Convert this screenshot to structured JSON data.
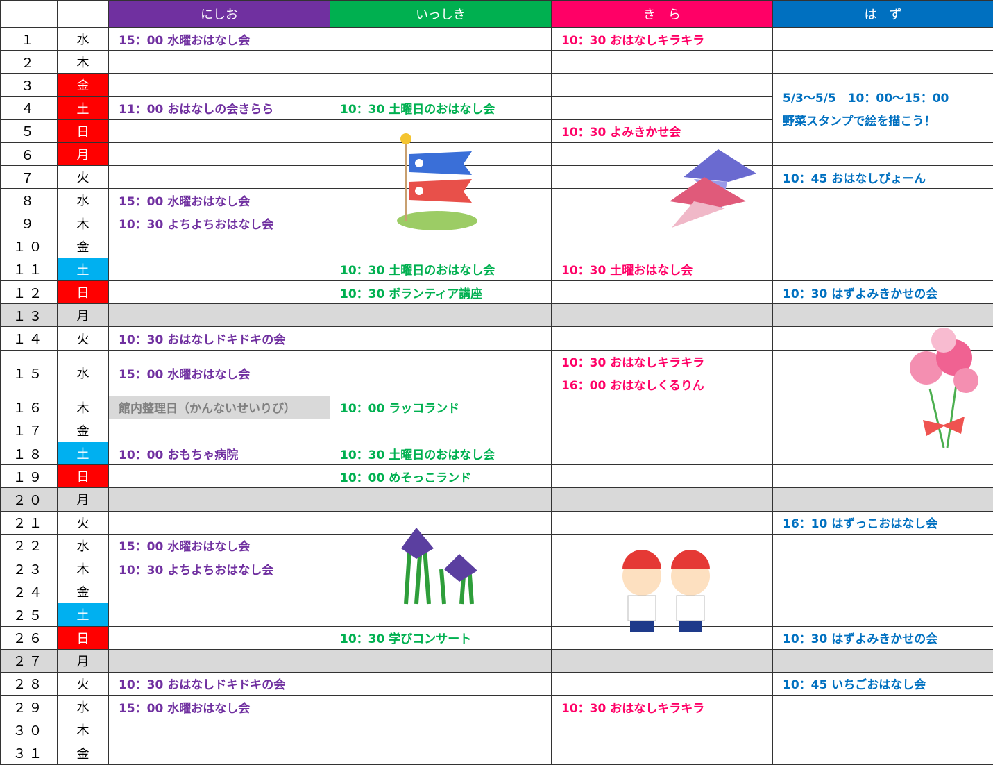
{
  "table": {
    "header": [
      {
        "label": "にしお",
        "color": "#7030a0"
      },
      {
        "label": "いっしき",
        "color": "#00b050"
      },
      {
        "label": "き　ら",
        "color": "#ff0066"
      },
      {
        "label": "は　ず",
        "color": "#0070c0"
      }
    ],
    "rows": [
      {
        "day": "１",
        "weekday": "水",
        "events": [
          "15：00 水曜おはなし会",
          null,
          "10：30 おはなしキラキラ",
          null
        ]
      },
      {
        "day": "２",
        "weekday": "木",
        "events": [
          null,
          null,
          null,
          null
        ]
      },
      {
        "day": "３",
        "weekday": "金",
        "weekday_bg": "#ff0000",
        "events": [
          null,
          null,
          null,
          {
            "lines": [
              "5/3～5/5　10：00～15：00",
              "野菜スタンプで絵を描こう！"
            ],
            "rowspan": 3
          }
        ]
      },
      {
        "day": "４",
        "weekday": "土",
        "weekday_bg": "#ff0000",
        "events": [
          "11：00 おはなしの会きらら",
          "10：30 土曜日のおはなし会",
          null,
          null
        ]
      },
      {
        "day": "５",
        "weekday": "日",
        "weekday_bg": "#ff0000",
        "events": [
          null,
          null,
          "10：30 よみきかせ会",
          null
        ]
      },
      {
        "day": "６",
        "weekday": "月",
        "weekday_bg": "#ff0000",
        "events": [
          null,
          null,
          null,
          null
        ]
      },
      {
        "day": "７",
        "weekday": "火",
        "events": [
          null,
          null,
          null,
          "10：45 おはなしぴょーん"
        ]
      },
      {
        "day": "８",
        "weekday": "水",
        "events": [
          "15：00 水曜おはなし会",
          null,
          null,
          null
        ]
      },
      {
        "day": "９",
        "weekday": "木",
        "events": [
          "10：30 よちよちおはなし会",
          null,
          null,
          null
        ]
      },
      {
        "day": "１０",
        "weekday": "金",
        "events": [
          null,
          null,
          null,
          null
        ]
      },
      {
        "day": "１１",
        "weekday": "土",
        "weekday_bg": "#00b0f0",
        "events": [
          null,
          "10：30 土曜日のおはなし会",
          "10：30 土曜おはなし会",
          null
        ]
      },
      {
        "day": "１２",
        "weekday": "日",
        "weekday_bg": "#ff0000",
        "events": [
          null,
          "10：30 ボランティア講座",
          null,
          "10：30 はずよみきかせの会"
        ]
      },
      {
        "day": "１３",
        "weekday": "月",
        "row_bg": "#d9d9d9",
        "events": [
          null,
          null,
          null,
          null
        ]
      },
      {
        "day": "１４",
        "weekday": "火",
        "events": [
          "10：30 おはなしドキドキの会",
          null,
          null,
          null
        ]
      },
      {
        "day": "１５",
        "weekday": "水",
        "events": [
          "15：00 水曜おはなし会",
          null,
          {
            "lines": [
              "10：30 おはなしキラキラ",
              "16：00 おはなしくるりん"
            ]
          },
          null
        ]
      },
      {
        "day": "１６",
        "weekday": "木",
        "events": [
          {
            "text": "館内整理日（かんないせいりび）",
            "background": "#d9d9d9",
            "color": "#7f7f7f"
          },
          "10：00 ラッコランド",
          null,
          null
        ]
      },
      {
        "day": "１７",
        "weekday": "金",
        "events": [
          null,
          null,
          null,
          null
        ]
      },
      {
        "day": "１８",
        "weekday": "土",
        "weekday_bg": "#00b0f0",
        "events": [
          "10：00 おもちゃ病院",
          "10：30 土曜日のおはなし会",
          null,
          null
        ]
      },
      {
        "day": "１９",
        "weekday": "日",
        "weekday_bg": "#ff0000",
        "events": [
          null,
          "10：00 めそっこランド",
          null,
          null
        ]
      },
      {
        "day": "２０",
        "weekday": "月",
        "row_bg": "#d9d9d9",
        "events": [
          null,
          null,
          null,
          null
        ]
      },
      {
        "day": "２１",
        "weekday": "火",
        "events": [
          null,
          null,
          null,
          "16：10 はずっこおはなし会"
        ]
      },
      {
        "day": "２２",
        "weekday": "水",
        "events": [
          "15：00 水曜おはなし会",
          null,
          null,
          null
        ]
      },
      {
        "day": "２３",
        "weekday": "木",
        "events": [
          "10：30 よちよちおはなし会",
          null,
          null,
          null
        ]
      },
      {
        "day": "２４",
        "weekday": "金",
        "events": [
          null,
          null,
          null,
          null
        ]
      },
      {
        "day": "２５",
        "weekday": "土",
        "weekday_bg": "#00b0f0",
        "events": [
          null,
          null,
          null,
          null
        ]
      },
      {
        "day": "２６",
        "weekday": "日",
        "weekday_bg": "#ff0000",
        "events": [
          null,
          "10：30 学びコンサート",
          null,
          "10：30 はずよみきかせの会"
        ]
      },
      {
        "day": "２７",
        "weekday": "月",
        "row_bg": "#d9d9d9",
        "events": [
          null,
          null,
          null,
          null
        ]
      },
      {
        "day": "２８",
        "weekday": "火",
        "events": [
          "10：30 おはなしドキドキの会",
          null,
          null,
          "10：45 いちごおはなし会"
        ]
      },
      {
        "day": "２９",
        "weekday": "水",
        "events": [
          "15：00 水曜おはなし会",
          null,
          "10：30 おはなしキラキラ",
          null
        ]
      },
      {
        "day": "３０",
        "weekday": "木",
        "events": [
          null,
          null,
          null,
          null
        ]
      },
      {
        "day": "３１",
        "weekday": "金",
        "events": [
          null,
          null,
          null,
          null
        ]
      }
    ]
  }
}
